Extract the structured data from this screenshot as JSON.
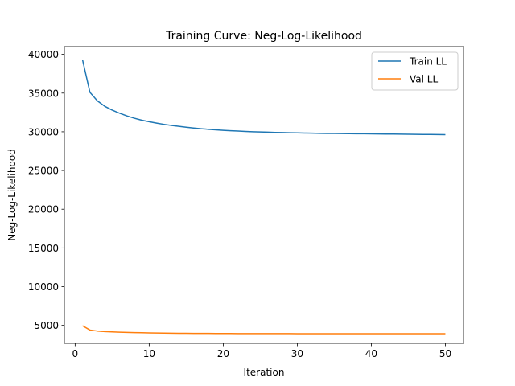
{
  "chart_data": {
    "type": "line",
    "title": "Training Curve: Neg-Log-Likelihood",
    "xlabel": "Iteration",
    "ylabel": "Neg-Log-Likelihood",
    "xlim": [
      -1.45,
      52.45
    ],
    "ylim": [
      2680,
      41000
    ],
    "xticks": [
      0,
      10,
      20,
      30,
      40,
      50
    ],
    "yticks": [
      5000,
      10000,
      15000,
      20000,
      25000,
      30000,
      35000,
      40000
    ],
    "grid": false,
    "legend_position": "top-right",
    "x": [
      1,
      2,
      3,
      4,
      5,
      6,
      7,
      8,
      9,
      10,
      11,
      12,
      13,
      14,
      15,
      16,
      17,
      18,
      19,
      20,
      21,
      22,
      23,
      24,
      25,
      26,
      27,
      28,
      29,
      30,
      31,
      32,
      33,
      34,
      35,
      36,
      37,
      38,
      39,
      40,
      41,
      42,
      43,
      44,
      45,
      46,
      47,
      48,
      49,
      50
    ],
    "series": [
      {
        "name": "Train LL",
        "color": "#1f77b4",
        "values": [
          39300,
          35100,
          34000,
          33300,
          32800,
          32400,
          32050,
          31750,
          31500,
          31300,
          31120,
          30960,
          30820,
          30700,
          30590,
          30490,
          30400,
          30320,
          30250,
          30190,
          30140,
          30090,
          30050,
          30010,
          29980,
          29950,
          29920,
          29900,
          29880,
          29860,
          29840,
          29820,
          29800,
          29790,
          29780,
          29770,
          29760,
          29750,
          29740,
          29730,
          29720,
          29710,
          29700,
          29690,
          29680,
          29670,
          29660,
          29650,
          29640,
          29630
        ]
      },
      {
        "name": "Val LL",
        "color": "#ff7f0e",
        "values": [
          4950,
          4400,
          4270,
          4200,
          4160,
          4120,
          4090,
          4070,
          4050,
          4030,
          4015,
          4000,
          3990,
          3980,
          3975,
          3970,
          3965,
          3960,
          3955,
          3950,
          3948,
          3945,
          3943,
          3940,
          3938,
          3936,
          3935,
          3934,
          3933,
          3932,
          3931,
          3930,
          3930,
          3930,
          3930,
          3930,
          3930,
          3930,
          3930,
          3930,
          3930,
          3930,
          3930,
          3930,
          3930,
          3930,
          3930,
          3930,
          3930,
          3930
        ]
      }
    ]
  }
}
